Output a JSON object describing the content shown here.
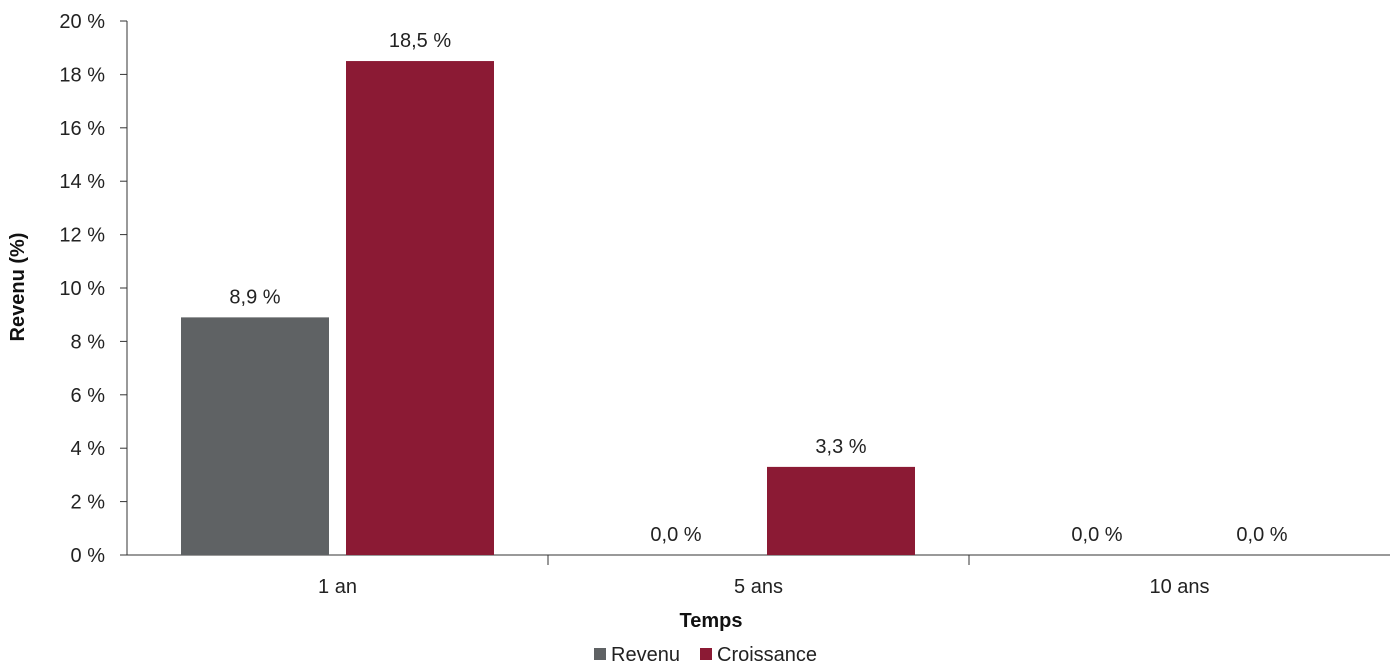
{
  "chart_data": {
    "type": "bar",
    "title": "",
    "xlabel": "Temps",
    "ylabel": "Revenu (%)",
    "categories": [
      "1 an",
      "5 ans",
      "10 ans"
    ],
    "series": [
      {
        "name": "Revenu",
        "color": "#5f6264",
        "values": [
          8.9,
          0.0,
          0.0
        ],
        "labels": [
          "8,9 %",
          "0,0 %",
          "0,0 %"
        ]
      },
      {
        "name": "Croissance",
        "color": "#8b1a34",
        "values": [
          18.5,
          3.3,
          0.0
        ],
        "labels": [
          "18,5 %",
          "3,3 %",
          "0,0 %"
        ]
      }
    ],
    "ylim": [
      0,
      20
    ],
    "yticks": [
      0,
      2,
      4,
      6,
      8,
      10,
      12,
      14,
      16,
      18,
      20
    ],
    "ytick_labels": [
      "0 %",
      "2 %",
      "4 %",
      "6 %",
      "8 %",
      "10 %",
      "12 %",
      "14 %",
      "16 %",
      "18 %",
      "20 %"
    ],
    "grid": false,
    "legend_position": "bottom"
  }
}
